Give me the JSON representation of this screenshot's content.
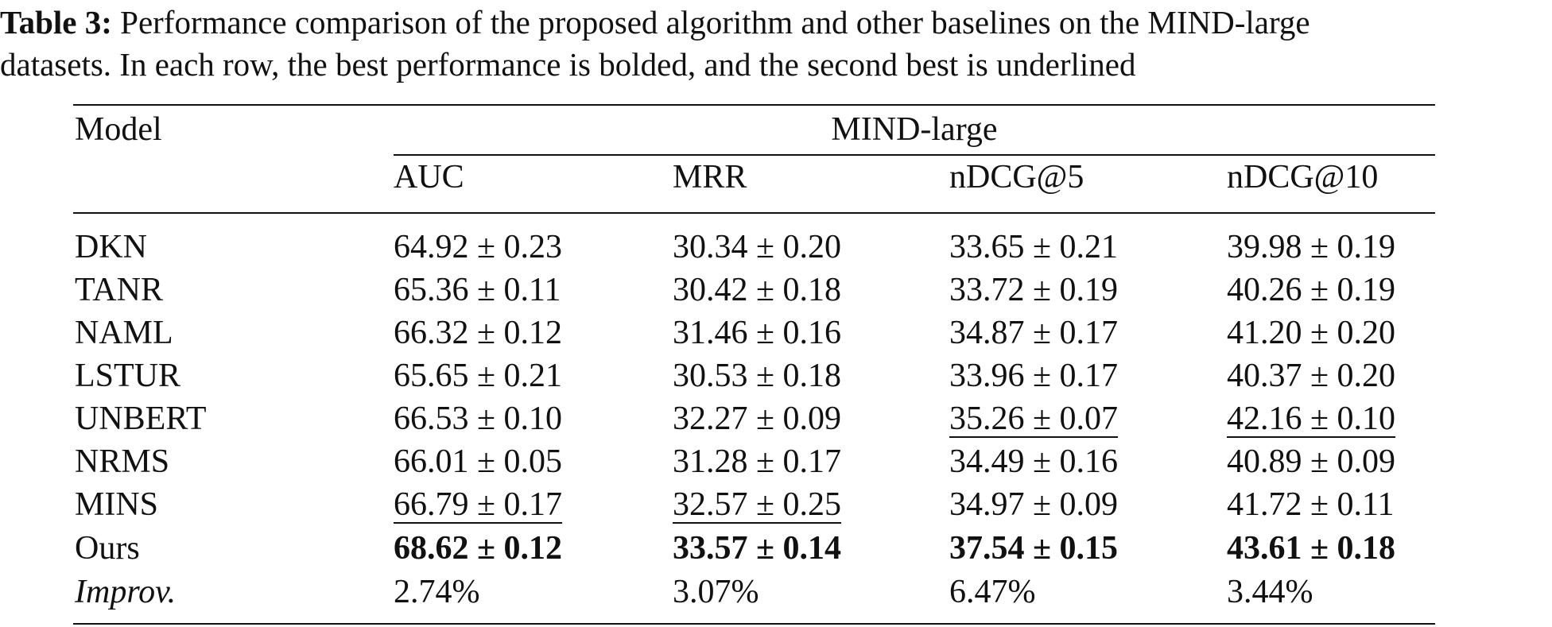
{
  "caption": {
    "label": "Table 3:",
    "line1_rest": " Performance comparison of the proposed algorithm and other baselines on the MIND-large",
    "line2": "datasets. In each row, the best performance is bolded, and the second best is underlined"
  },
  "table": {
    "model_header": "Model",
    "group_header": "MIND-large",
    "metric_headers": [
      "AUC",
      "MRR",
      "nDCG@5",
      "nDCG@10"
    ],
    "rows": [
      {
        "model": "DKN",
        "values": [
          "64.92 ± 0.23",
          "30.34 ± 0.20",
          "33.65 ± 0.21",
          "39.98 ± 0.19"
        ]
      },
      {
        "model": "TANR",
        "values": [
          "65.36 ± 0.11",
          "30.42 ± 0.18",
          "33.72 ± 0.19",
          "40.26 ± 0.19"
        ]
      },
      {
        "model": "NAML",
        "values": [
          "66.32 ± 0.12",
          "31.46 ± 0.16",
          "34.87 ± 0.17",
          "41.20 ± 0.20"
        ]
      },
      {
        "model": "LSTUR",
        "values": [
          "65.65 ± 0.21",
          "30.53 ± 0.18",
          "33.96 ± 0.17",
          "40.37 ± 0.20"
        ]
      },
      {
        "model": "UNBERT",
        "values": [
          "66.53 ± 0.10",
          "32.27 ± 0.09",
          "35.26 ± 0.07",
          "42.16 ± 0.10"
        ]
      },
      {
        "model": "NRMS",
        "values": [
          "66.01 ± 0.05",
          "31.28 ± 0.17",
          "34.49 ± 0.16",
          "40.89 ± 0.09"
        ]
      },
      {
        "model": "MINS",
        "values": [
          "66.79 ± 0.17",
          "32.57 ± 0.25",
          "34.97 ± 0.09",
          "41.72 ± 0.11"
        ]
      },
      {
        "model": "Ours",
        "values": [
          "68.62 ± 0.12",
          "33.57 ± 0.14",
          "37.54 ± 0.15",
          "43.61 ± 0.18"
        ]
      },
      {
        "model": "Improv.",
        "values": [
          "2.74%",
          "3.07%",
          "6.47%",
          "3.44%"
        ]
      }
    ],
    "best_row_index": 7,
    "second_best": [
      {
        "row": 6,
        "col": 0
      },
      {
        "row": 6,
        "col": 1
      },
      {
        "row": 4,
        "col": 2
      },
      {
        "row": 4,
        "col": 3
      }
    ]
  }
}
